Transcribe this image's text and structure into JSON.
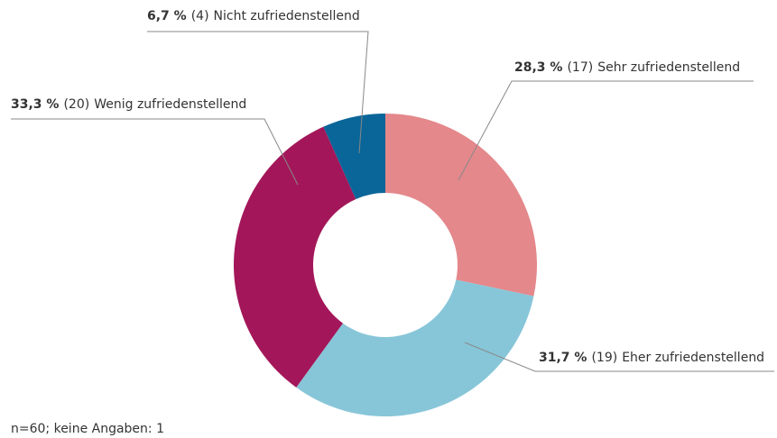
{
  "chart_data": {
    "type": "donut",
    "categories": [
      "Sehr zufriedenstellend",
      "Eher zufriedenstellend",
      "Wenig zufriedenstellend",
      "Nicht zufriedenstellend"
    ],
    "values": [
      28.3,
      31.7,
      33.3,
      6.7
    ],
    "value_labels": [
      "28,3 %",
      "31,7 %",
      "33,3 %",
      "6,7 %"
    ],
    "count_labels": [
      "(17)",
      "(19)",
      "(20)",
      "(4)"
    ],
    "colors": [
      "#e4888b",
      "#87c6d8",
      "#a3175a",
      "#0a6699"
    ],
    "note": "n=60; keine Angaben: 1"
  }
}
